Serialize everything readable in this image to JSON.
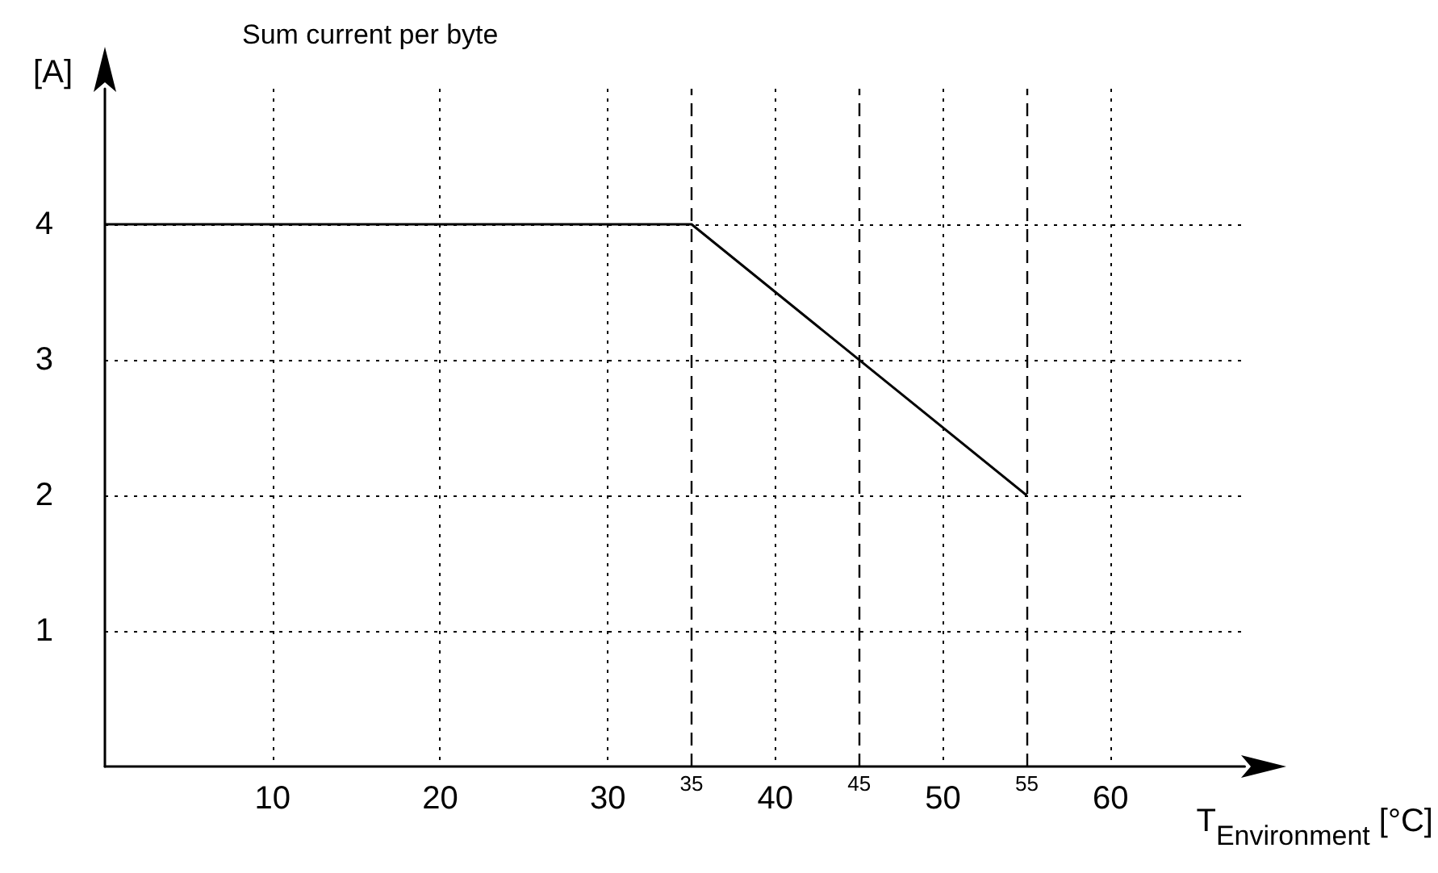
{
  "chart_data": {
    "type": "line",
    "title": "Sum current per byte",
    "xlabel": "T$_{Environment}$ [°C]",
    "ylabel": "[A]",
    "x": [
      0,
      35,
      55
    ],
    "series": [
      {
        "color": "#000000",
        "values": [
          4,
          4,
          2
        ]
      }
    ],
    "xlim": [
      0,
      68
    ],
    "xticks": [
      10,
      20,
      30,
      40,
      50,
      60
    ],
    "ylim": [
      0,
      5
    ],
    "yticks": [
      1,
      2,
      3,
      4
    ],
    "grid": true,
    "marker": "none",
    "line_style": "solid",
    "ref_lines": [
      {
        "axis": "x",
        "value": 35,
        "label": "35",
        "line_style": "dashed"
      },
      {
        "axis": "x",
        "value": 45,
        "label": "45",
        "line_style": "dashed"
      },
      {
        "axis": "x",
        "value": 55,
        "label": "55",
        "line_style": "dashed"
      }
    ]
  }
}
